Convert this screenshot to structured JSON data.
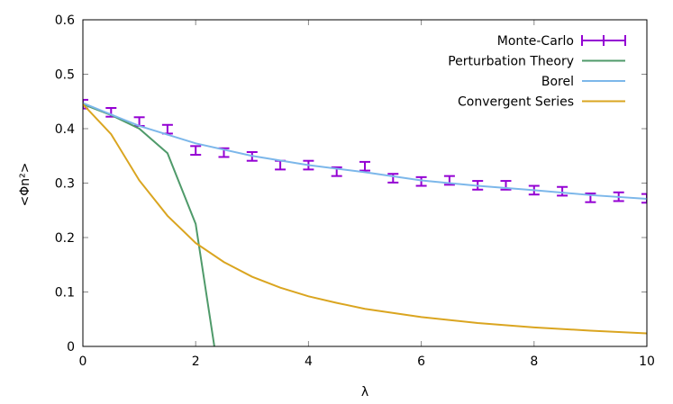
{
  "chart_data": {
    "type": "line",
    "xlabel": "λ",
    "ylabel": "<Φn²>",
    "ylabel_main": "<Φ",
    "ylabel_sub": "n",
    "ylabel_sup": "2",
    "ylabel_end": ">",
    "xlim": [
      0,
      10
    ],
    "ylim": [
      0,
      0.6
    ],
    "xticks": [
      "0",
      "2",
      "4",
      "6",
      "8",
      "10"
    ],
    "yticks": [
      "0",
      "0.1",
      "0.2",
      "0.3",
      "0.4",
      "0.5",
      "0.6"
    ],
    "grid": false,
    "legend_position": "top-right",
    "series": [
      {
        "name": "Monte-Carlo",
        "style": "errorbars",
        "color": "#9400d3",
        "x": [
          0,
          0.5,
          1,
          1.5,
          2,
          2.5,
          3,
          3.5,
          4,
          4.5,
          5,
          5.5,
          6,
          6.5,
          7,
          7.5,
          8,
          8.5,
          9,
          9.5,
          10
        ],
        "y": [
          0.445,
          0.43,
          0.413,
          0.399,
          0.36,
          0.356,
          0.349,
          0.333,
          0.333,
          0.321,
          0.331,
          0.309,
          0.303,
          0.305,
          0.296,
          0.296,
          0.287,
          0.285,
          0.273,
          0.275,
          0.272
        ],
        "err": 0.008
      },
      {
        "name": "Perturbation Theory",
        "style": "line",
        "color": "#4f9a6a",
        "x": [
          0,
          0.5,
          1,
          1.5,
          2,
          2.5
        ],
        "y": [
          0.445,
          0.425,
          0.4,
          0.355,
          0.225,
          -0.115
        ]
      },
      {
        "name": "Borel",
        "style": "line",
        "color": "#7cb7ea",
        "x": [
          0,
          1,
          2,
          3,
          4,
          5,
          6,
          7,
          8,
          9,
          10
        ],
        "y": [
          0.447,
          0.405,
          0.373,
          0.35,
          0.333,
          0.32,
          0.305,
          0.295,
          0.287,
          0.278,
          0.271
        ]
      },
      {
        "name": "Convergent Series",
        "style": "line",
        "color": "#daa520",
        "x": [
          0,
          0.5,
          1,
          1.5,
          2,
          2.5,
          3,
          3.5,
          4,
          4.5,
          5,
          6,
          7,
          8,
          9,
          10
        ],
        "y": [
          0.445,
          0.39,
          0.305,
          0.24,
          0.19,
          0.155,
          0.128,
          0.108,
          0.092,
          0.08,
          0.069,
          0.054,
          0.043,
          0.035,
          0.029,
          0.024
        ]
      }
    ]
  }
}
